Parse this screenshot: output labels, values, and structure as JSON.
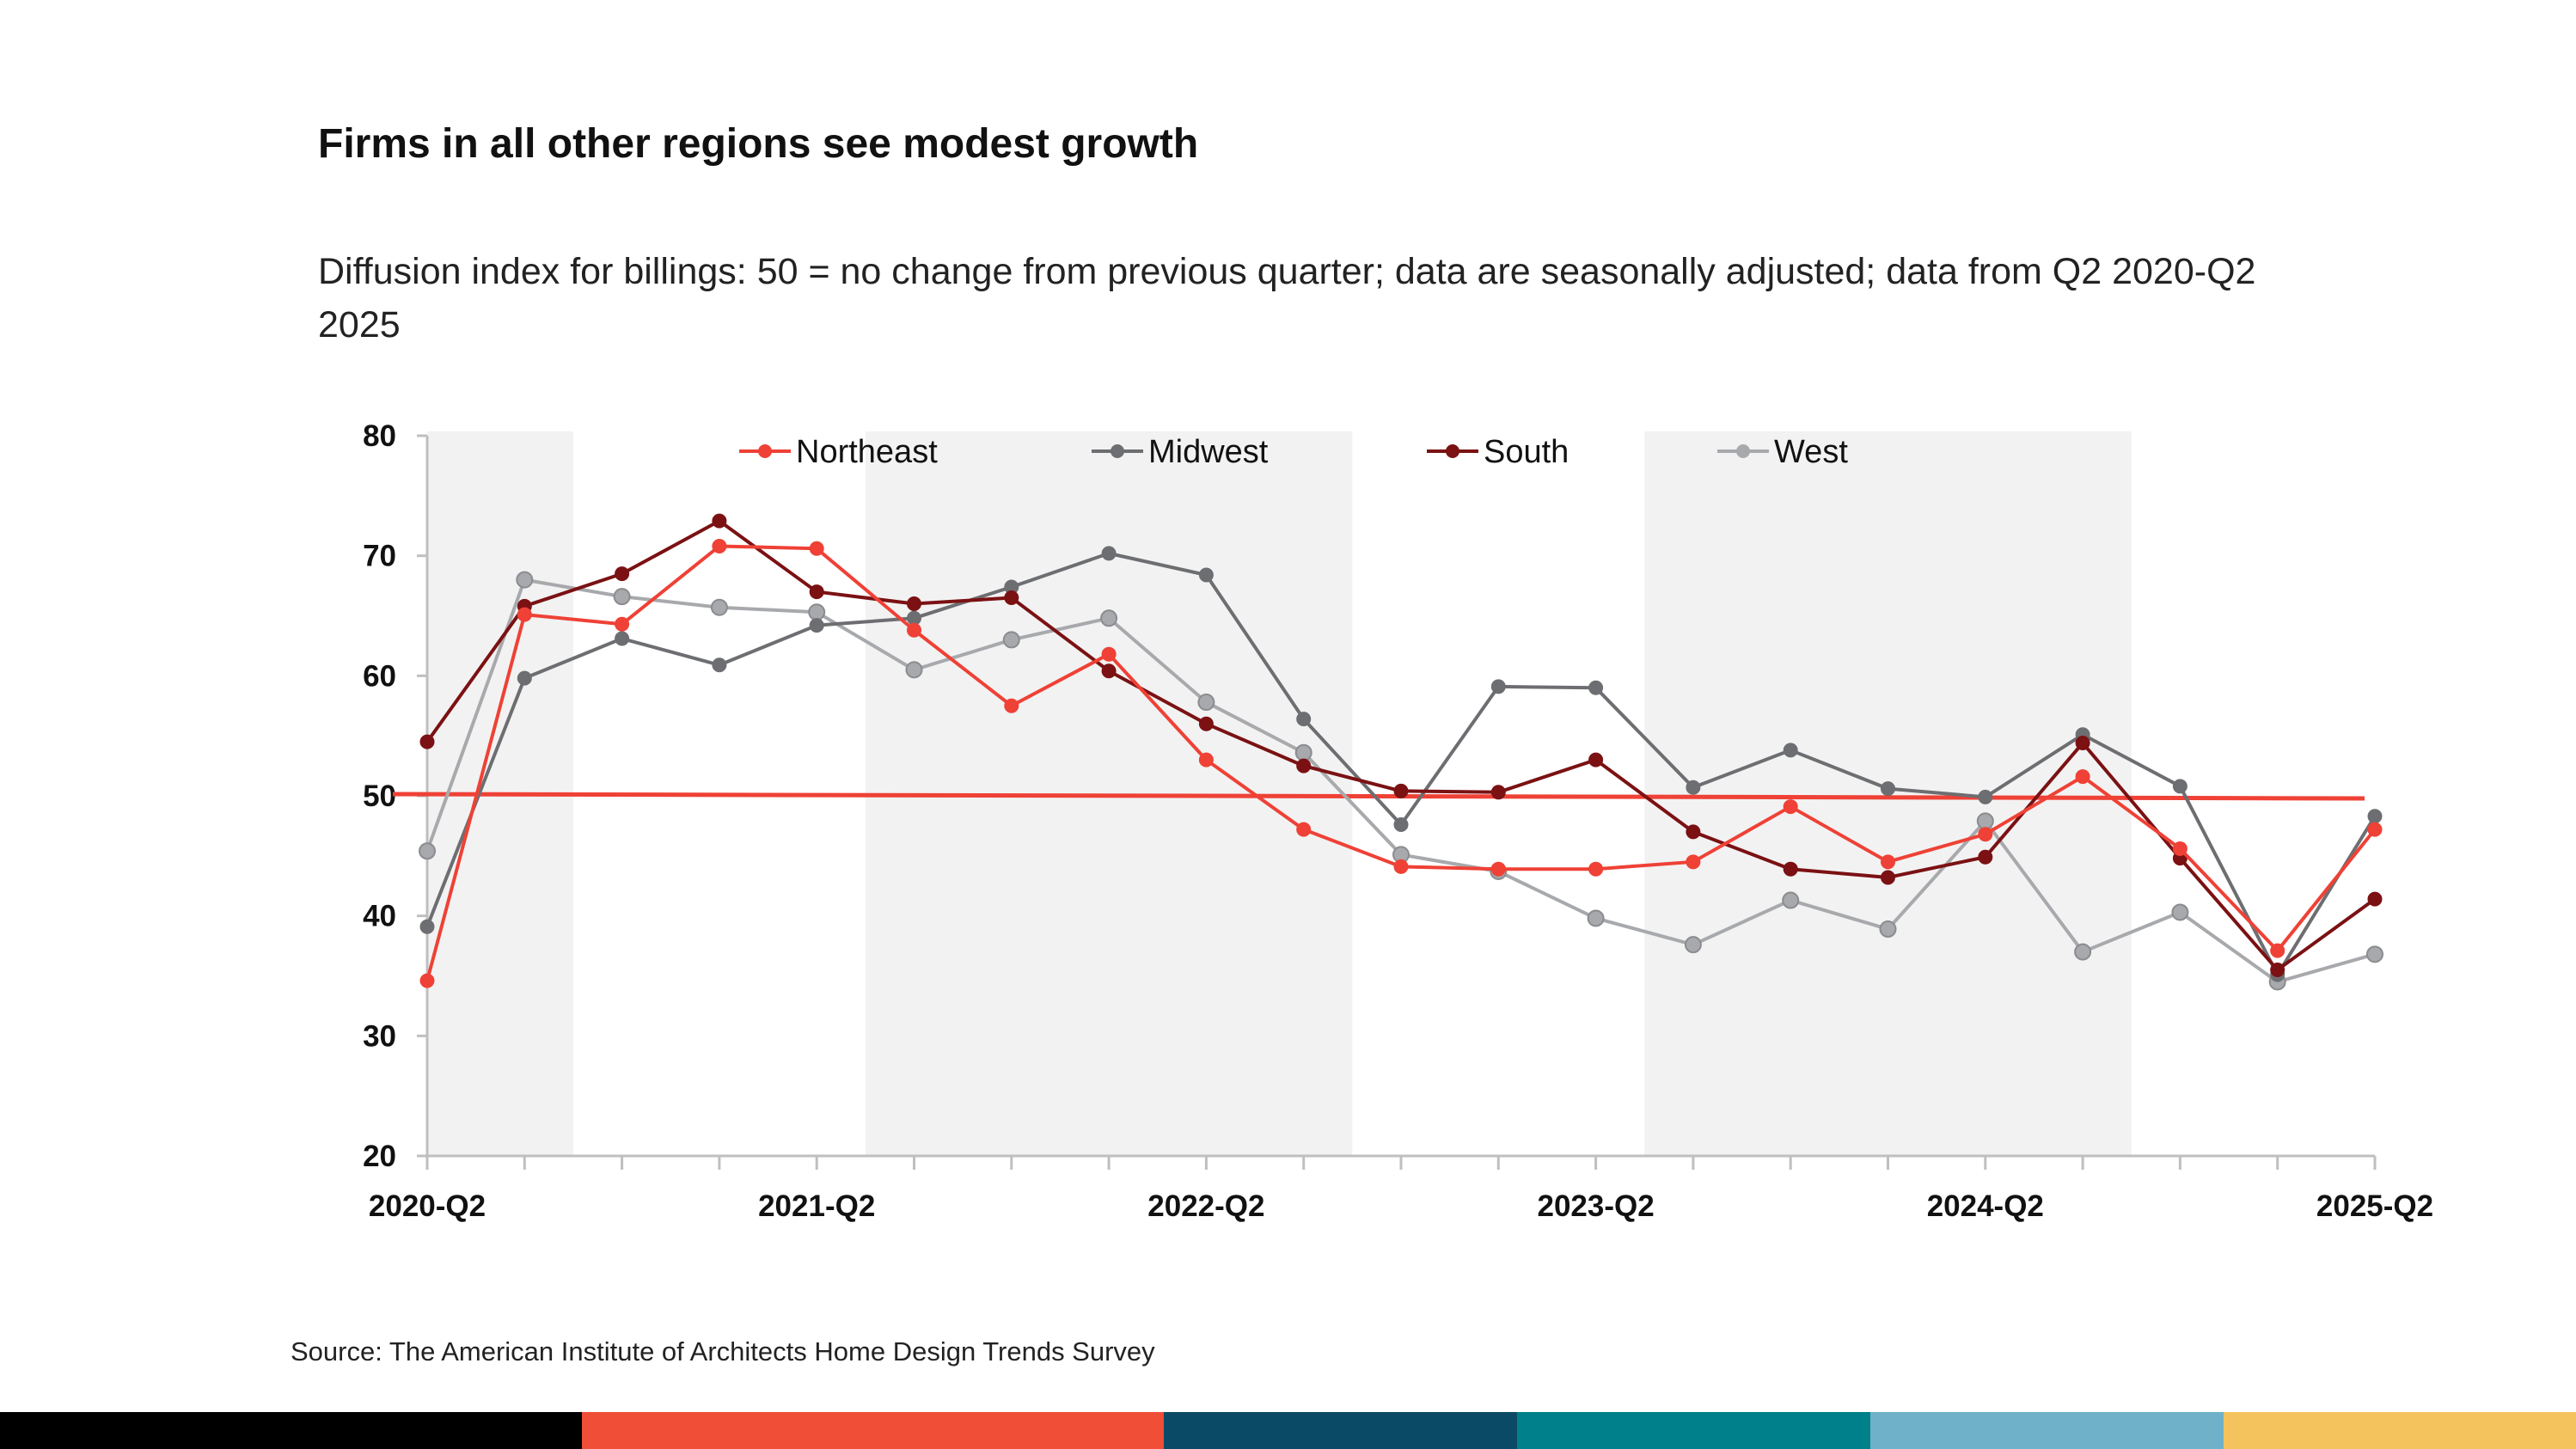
{
  "title": "Firms in all other regions see modest growth",
  "subtitle": "Diffusion index for billings: 50 = no change from previous quarter; data are seasonally adjusted; data from Q2 2020-Q2 2025",
  "source": "Source: The American Institute of Architects Home Design Trends Survey",
  "colors": {
    "northeast": "#ef4136",
    "midwest": "#6d6e71",
    "south": "#7b1113",
    "west": "#a7a9ac",
    "reference_line": "#ef4136",
    "shading": "#f2f2f2",
    "bottom_bar": [
      "#000000",
      "#f04e37",
      "#0b4a66",
      "#00808a",
      "#6fb1c8",
      "#f4c35e"
    ]
  },
  "chart_data": {
    "type": "line",
    "title": "Firms in all other regions see modest growth",
    "xlabel": "",
    "ylabel": "",
    "ylim": [
      20,
      80
    ],
    "yticks": [
      20,
      30,
      40,
      50,
      60,
      70,
      80
    ],
    "x": [
      "2020-Q2",
      "2020-Q3",
      "2020-Q4",
      "2021-Q1",
      "2021-Q2",
      "2021-Q3",
      "2021-Q4",
      "2022-Q1",
      "2022-Q2",
      "2022-Q3",
      "2022-Q4",
      "2023-Q1",
      "2023-Q2",
      "2023-Q3",
      "2023-Q4",
      "2024-Q1",
      "2024-Q2",
      "2024-Q3",
      "2024-Q4",
      "2025-Q1",
      "2025-Q2"
    ],
    "xtick_labels": [
      "2020-Q2",
      "2021-Q2",
      "2022-Q2",
      "2023-Q2",
      "2024-Q2",
      "2025-Q2"
    ],
    "shaded_periods": [
      [
        "2020-Q2",
        "2020-Q3"
      ],
      [
        "2021-Q3",
        "2022-Q3"
      ],
      [
        "2023-Q3",
        "2024-Q3"
      ]
    ],
    "reference_line": 50,
    "legend_position": "top",
    "series": [
      {
        "name": "Northeast",
        "key": "northeast",
        "values": [
          34.6,
          65.1,
          64.3,
          70.8,
          70.6,
          63.8,
          57.5,
          61.8,
          53.0,
          47.2,
          44.1,
          43.9,
          43.9,
          44.5,
          49.1,
          44.5,
          46.8,
          51.6,
          45.6,
          37.1,
          47.2
        ]
      },
      {
        "name": "Midwest",
        "key": "midwest",
        "values": [
          39.1,
          59.8,
          63.1,
          60.9,
          64.2,
          64.8,
          67.4,
          70.2,
          68.4,
          56.4,
          47.6,
          59.1,
          59.0,
          50.7,
          53.8,
          50.6,
          49.9,
          55.1,
          50.8,
          35.1,
          48.3
        ]
      },
      {
        "name": "South",
        "key": "south",
        "values": [
          54.5,
          65.8,
          68.5,
          72.9,
          67.0,
          66.0,
          66.5,
          60.4,
          56.0,
          52.5,
          50.4,
          50.3,
          53.0,
          47.0,
          43.9,
          43.2,
          44.9,
          54.4,
          44.8,
          35.5,
          41.4
        ]
      },
      {
        "name": "West",
        "key": "west",
        "values": [
          45.4,
          68.0,
          66.6,
          65.7,
          65.3,
          60.5,
          63.0,
          64.8,
          57.8,
          53.6,
          45.1,
          43.7,
          39.8,
          37.6,
          41.3,
          38.9,
          47.9,
          37.0,
          40.3,
          34.5,
          36.8
        ]
      }
    ]
  }
}
